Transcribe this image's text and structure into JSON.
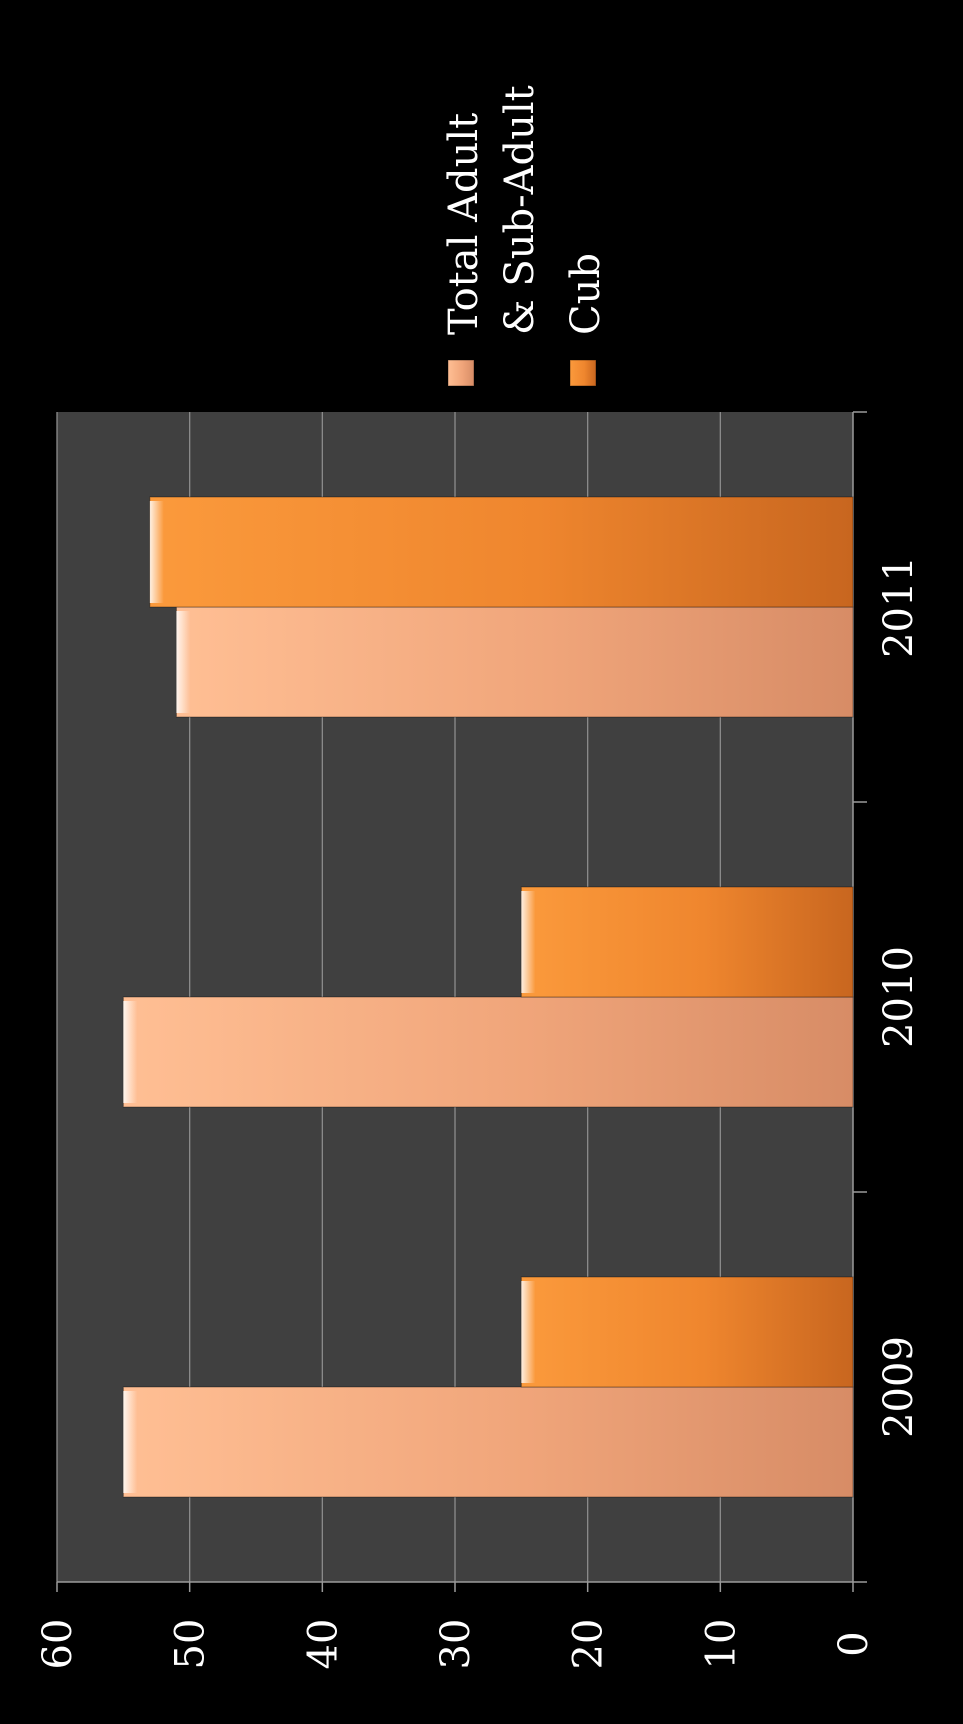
{
  "chart_data": {
    "type": "bar",
    "orientation": "vertical columns, image rotated 90° clockwise",
    "categories": [
      "2009",
      "2010",
      "2011"
    ],
    "series": [
      {
        "name": "Total Adult & Sub-Adult",
        "legend_lines": [
          "Total Adult",
          "& Sub-Adult"
        ],
        "values": [
          55,
          55,
          51
        ],
        "color": "#f4a77a"
      },
      {
        "name": "Cub",
        "legend_lines": [
          "Cub"
        ],
        "values": [
          25,
          25,
          53
        ],
        "color": "#f0842c"
      }
    ],
    "ylim": [
      0,
      60
    ],
    "yticks": [
      0,
      10,
      20,
      30,
      40,
      50,
      60
    ],
    "grid": true,
    "legend_position": "right",
    "colors": {
      "background": "#000000",
      "plot_area": "#404040",
      "gridline": "#8c8c8c",
      "text": "#ffffff"
    }
  }
}
